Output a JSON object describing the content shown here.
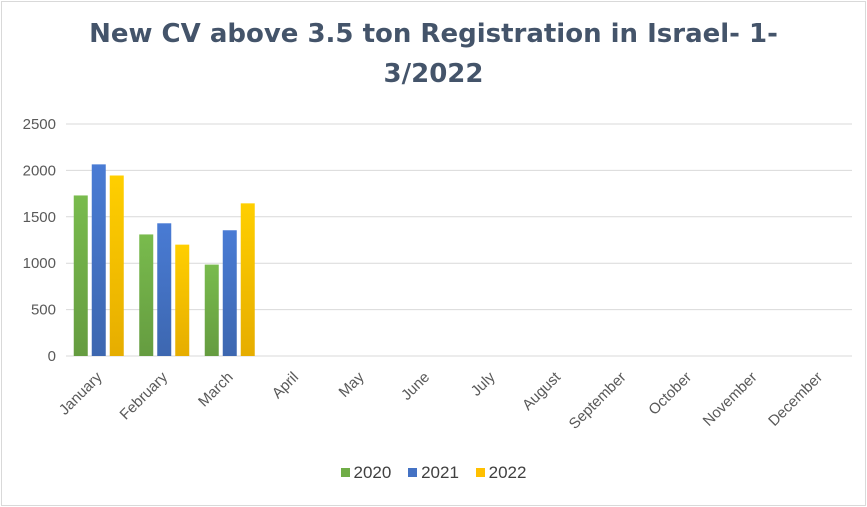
{
  "chart_data": {
    "type": "bar",
    "title_lines": [
      "New CV above 3.5 ton Registration in Israel- 1-",
      "3/2022"
    ],
    "categories": [
      "January",
      "February",
      "March",
      "April",
      "May",
      "June",
      "July",
      "August",
      "September",
      "October",
      "November",
      "December"
    ],
    "series": [
      {
        "name": "2020",
        "color": "#70ad47",
        "values": [
          1730,
          1310,
          985,
          null,
          null,
          null,
          null,
          null,
          null,
          null,
          null,
          null
        ]
      },
      {
        "name": "2021",
        "color": "#4472c4",
        "values": [
          2065,
          1430,
          1355,
          null,
          null,
          null,
          null,
          null,
          null,
          null,
          null,
          null
        ]
      },
      {
        "name": "2022",
        "color": "#ffc000",
        "values": [
          1945,
          1200,
          1645,
          null,
          null,
          null,
          null,
          null,
          null,
          null,
          null,
          null
        ]
      }
    ],
    "ylim": [
      0,
      2500
    ],
    "yticks": [
      0,
      500,
      1000,
      1500,
      2000,
      2500
    ],
    "grid": true,
    "legend_position": "bottom"
  }
}
